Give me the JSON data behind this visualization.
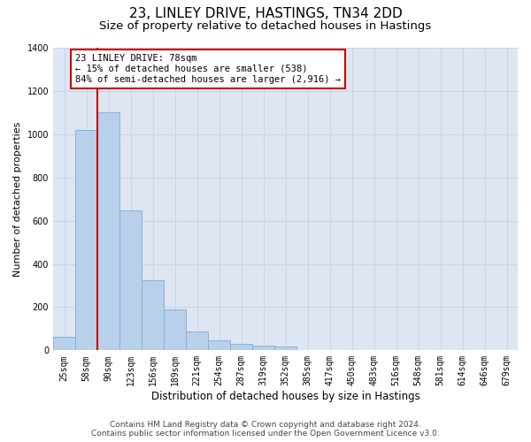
{
  "title_line1": "23, LINLEY DRIVE, HASTINGS, TN34 2DD",
  "title_line2": "Size of property relative to detached houses in Hastings",
  "xlabel": "Distribution of detached houses by size in Hastings",
  "ylabel": "Number of detached properties",
  "categories": [
    "25sqm",
    "58sqm",
    "90sqm",
    "123sqm",
    "156sqm",
    "189sqm",
    "221sqm",
    "254sqm",
    "287sqm",
    "319sqm",
    "352sqm",
    "385sqm",
    "417sqm",
    "450sqm",
    "483sqm",
    "516sqm",
    "548sqm",
    "581sqm",
    "614sqm",
    "646sqm",
    "679sqm"
  ],
  "values": [
    62,
    1020,
    1100,
    648,
    325,
    188,
    88,
    45,
    28,
    22,
    18,
    0,
    0,
    0,
    0,
    0,
    0,
    0,
    0,
    0,
    0
  ],
  "bar_color": "#b8d0ea",
  "bar_edge_color": "#7aafd4",
  "vline_color": "#cc0000",
  "annotation_text": "23 LINLEY DRIVE: 78sqm\n← 15% of detached houses are smaller (538)\n84% of semi-detached houses are larger (2,916) →",
  "annotation_box_color": "#ffffff",
  "annotation_box_edge_color": "#cc0000",
  "ylim": [
    0,
    1400
  ],
  "yticks": [
    0,
    200,
    400,
    600,
    800,
    1000,
    1200,
    1400
  ],
  "grid_color": "#c8d4e8",
  "bg_color": "#dde6f2",
  "footer_line1": "Contains HM Land Registry data © Crown copyright and database right 2024.",
  "footer_line2": "Contains public sector information licensed under the Open Government Licence v3.0.",
  "title_fontsize": 11,
  "subtitle_fontsize": 9.5,
  "axis_label_fontsize": 8,
  "tick_fontsize": 7,
  "annotation_fontsize": 7.5,
  "footer_fontsize": 6.5
}
